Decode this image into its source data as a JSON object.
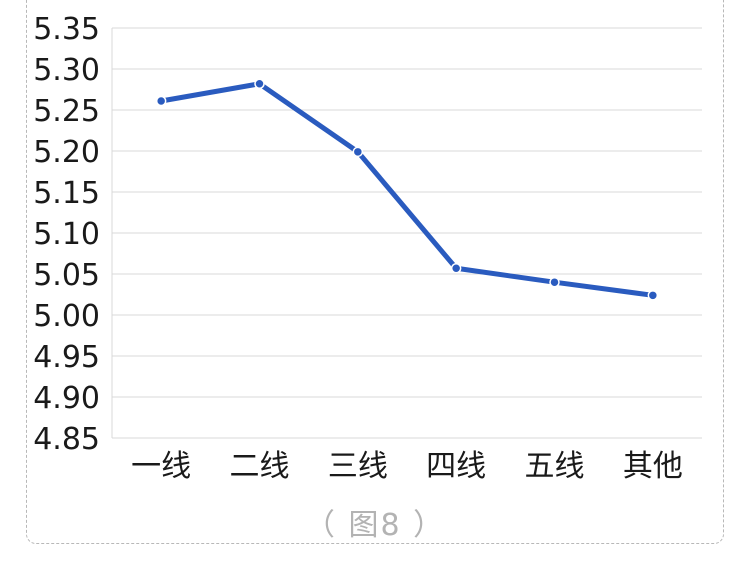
{
  "chart_data": {
    "type": "line",
    "categories": [
      "一线",
      "二线",
      "三线",
      "四线",
      "五线",
      "其他"
    ],
    "series": [
      {
        "values": [
          5.261,
          5.282,
          5.199,
          5.057,
          5.04,
          5.024
        ],
        "color": "#2a5bbf"
      }
    ],
    "ylim": [
      4.85,
      5.35
    ],
    "yticks": [
      "5.35",
      "5.30",
      "5.25",
      "5.20",
      "5.15",
      "5.10",
      "5.05",
      "5.00",
      "4.95",
      "4.90",
      "4.85"
    ],
    "grid": true,
    "gridColor": "#d9d9d9",
    "markerFill": "#2a5bbf",
    "markerStroke": "#ffffff"
  },
  "caption": "（ 图8 ）"
}
